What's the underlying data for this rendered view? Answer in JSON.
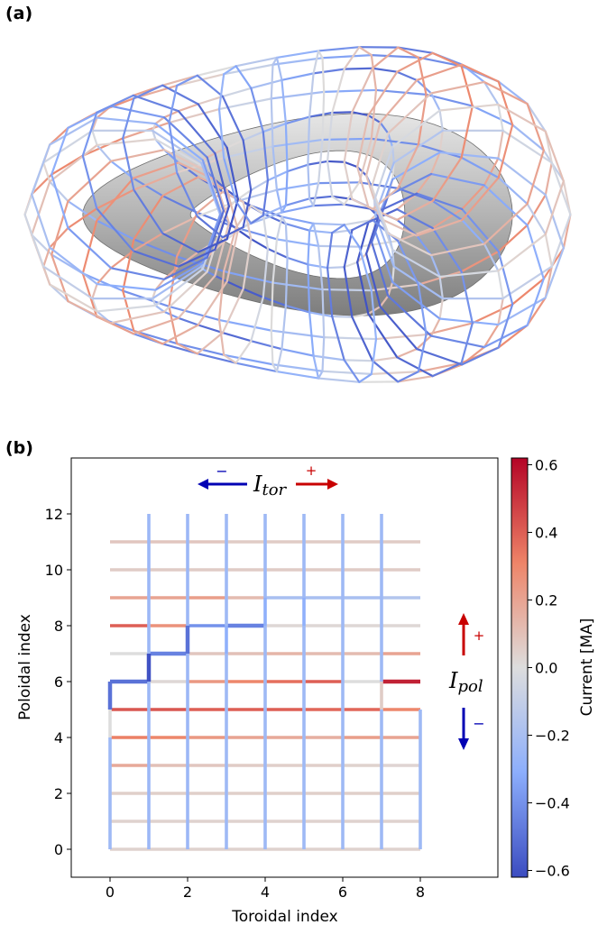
{
  "figure": {
    "panel_a_label": "(a)",
    "panel_b_label": "(b)"
  },
  "colorscale": {
    "neg": "#3b4cc0",
    "mid": "#dddddd",
    "pos": "#b40426",
    "surface": "#a9a9a9",
    "arrow_neg": "#0000b4",
    "arrow_pos": "#c80000"
  },
  "annotations": {
    "tor_label": "I",
    "tor_sub": "tor",
    "pol_label": "I",
    "pol_sub": "pol",
    "plus": "+",
    "minus": "−"
  },
  "chart_data": {
    "type": "heatmap",
    "xlabel": "Toroidal index",
    "ylabel": "Poloidal index",
    "xlim": [
      -1,
      10
    ],
    "ylim": [
      -1,
      14
    ],
    "xticks": [
      0,
      2,
      4,
      6,
      8
    ],
    "yticks": [
      0,
      2,
      4,
      6,
      8,
      10,
      12
    ],
    "colorbar": {
      "label": "Current [MA]",
      "range": [
        -0.62,
        0.62
      ],
      "ticks": [
        0.6,
        0.4,
        0.2,
        0.0,
        -0.2,
        -0.4,
        -0.6
      ],
      "tick_labels": [
        "0.6",
        "0.4",
        "0.2",
        "0.0",
        "−0.2",
        "−0.4",
        "−0.6"
      ]
    },
    "horizontal_segments": {
      "description": "rows = poloidal index 0..11, columns = segment between toroidal index i and i+1 (i = 0..7), values in MA",
      "values": [
        [
          0.04,
          0.04,
          0.04,
          0.04,
          0.04,
          0.04,
          0.04,
          0.04
        ],
        [
          0.04,
          0.04,
          0.04,
          0.04,
          0.04,
          0.04,
          0.04,
          0.04
        ],
        [
          0.05,
          0.05,
          0.05,
          0.05,
          0.05,
          0.05,
          0.05,
          0.05
        ],
        [
          0.18,
          0.1,
          0.08,
          0.06,
          0.05,
          0.05,
          0.04,
          0.03
        ],
        [
          0.32,
          0.3,
          0.24,
          0.2,
          0.18,
          0.16,
          0.22,
          0.2
        ],
        [
          0.42,
          0.42,
          0.4,
          0.4,
          0.4,
          0.38,
          0.38,
          0.3
        ],
        [
          -0.5,
          0.02,
          0.24,
          0.3,
          0.36,
          0.4,
          0.0,
          0.55
        ],
        [
          0.0,
          -0.45,
          0.08,
          0.1,
          0.14,
          0.12,
          0.12,
          0.2
        ],
        [
          0.4,
          0.26,
          -0.4,
          -0.45,
          0.02,
          0.02,
          0.02,
          0.02
        ],
        [
          0.2,
          0.2,
          0.22,
          0.12,
          -0.2,
          -0.2,
          -0.2,
          -0.16
        ],
        [
          0.06,
          0.06,
          0.06,
          0.06,
          0.06,
          0.06,
          0.06,
          0.06
        ],
        [
          0.08,
          0.08,
          0.08,
          0.06,
          0.06,
          0.06,
          0.06,
          0.06
        ]
      ]
    },
    "vertical_segments": {
      "description": "columns = toroidal index 0..8, rows = segment between poloidal index j and j+1 (j = 0..11), values in MA; null = no segment",
      "values": [
        [
          -0.24,
          -0.25,
          -0.25,
          -0.24,
          -0.24,
          -0.24,
          -0.24,
          -0.24,
          -0.24
        ],
        [
          -0.24,
          -0.25,
          -0.25,
          -0.24,
          -0.24,
          -0.24,
          -0.24,
          -0.24,
          -0.24
        ],
        [
          -0.24,
          -0.25,
          -0.25,
          -0.24,
          -0.24,
          -0.24,
          -0.24,
          -0.24,
          -0.24
        ],
        [
          -0.24,
          -0.25,
          -0.25,
          -0.24,
          -0.24,
          -0.24,
          -0.24,
          -0.24,
          -0.24
        ],
        [
          0.0,
          -0.25,
          -0.25,
          -0.24,
          -0.24,
          -0.24,
          -0.24,
          -0.24,
          -0.24
        ],
        [
          -0.5,
          -0.25,
          -0.25,
          -0.24,
          -0.24,
          -0.24,
          -0.24,
          0.06,
          null
        ],
        [
          null,
          -0.6,
          -0.25,
          -0.24,
          -0.24,
          -0.24,
          -0.24,
          -0.24,
          null
        ],
        [
          null,
          -0.25,
          -0.5,
          -0.3,
          -0.24,
          -0.24,
          -0.24,
          -0.24,
          null
        ],
        [
          null,
          -0.25,
          -0.25,
          -0.24,
          -0.3,
          -0.3,
          -0.24,
          -0.24,
          null
        ],
        [
          null,
          -0.25,
          -0.25,
          -0.24,
          -0.24,
          -0.24,
          -0.24,
          -0.24,
          null
        ],
        [
          null,
          -0.25,
          -0.25,
          -0.24,
          -0.24,
          -0.24,
          -0.24,
          -0.24,
          null
        ],
        [
          null,
          -0.25,
          -0.25,
          -0.24,
          -0.24,
          -0.24,
          -0.24,
          -0.24,
          null
        ]
      ]
    }
  }
}
